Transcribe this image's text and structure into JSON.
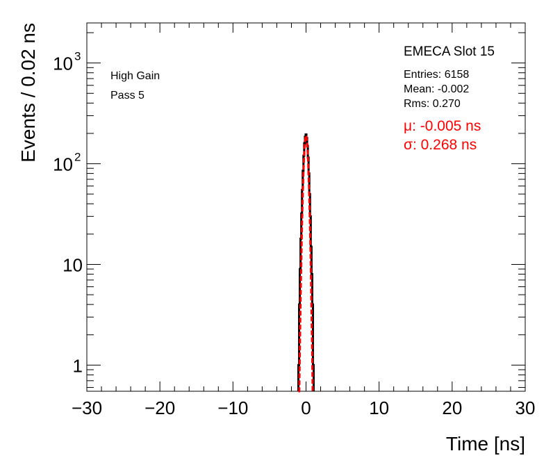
{
  "chart_data": {
    "type": "histogram",
    "title": "EMECA Slot 15",
    "xlabel": "Time [ns]",
    "ylabel": "Events / 0.02 ns",
    "xlim": [
      -30,
      30
    ],
    "ylim": [
      0.55,
      2500
    ],
    "y_scale": "log",
    "x_ticks": [
      "−30",
      "−20",
      "−10",
      "0",
      "10",
      "20",
      "30"
    ],
    "x_tick_values": [
      -30,
      -20,
      -10,
      0,
      10,
      20,
      30
    ],
    "y_ticks": [
      {
        "value": 1,
        "label": "1"
      },
      {
        "value": 10,
        "label": "10"
      },
      {
        "value": 100,
        "base": "10",
        "exp": "2"
      },
      {
        "value": 1000,
        "base": "10",
        "exp": "3"
      }
    ],
    "annotations": [
      "High Gain",
      "Pass 5"
    ],
    "stats": {
      "entries": "Entries: 6158",
      "mean": "Mean: -0.002",
      "rms": "Rms: 0.270"
    },
    "fit": {
      "mu_label": "μ: -0.005 ns",
      "sigma_label": "σ: 0.268 ns",
      "mu": -0.005,
      "sigma": 0.268,
      "amplitude": 190,
      "color": "#ff0000"
    },
    "histogram": {
      "bins_x": [
        -1.0,
        -0.9,
        -0.8,
        -0.7,
        -0.6,
        -0.5,
        -0.4,
        -0.3,
        -0.2,
        -0.1,
        0.0,
        0.1,
        0.2,
        0.3,
        0.4,
        0.5,
        0.6,
        0.7,
        0.8,
        0.9,
        1.0
      ],
      "counts": [
        1,
        4,
        9,
        18,
        32,
        55,
        85,
        120,
        160,
        185,
        195,
        180,
        150,
        115,
        80,
        50,
        30,
        15,
        8,
        4,
        1
      ],
      "color": "#000000"
    }
  }
}
